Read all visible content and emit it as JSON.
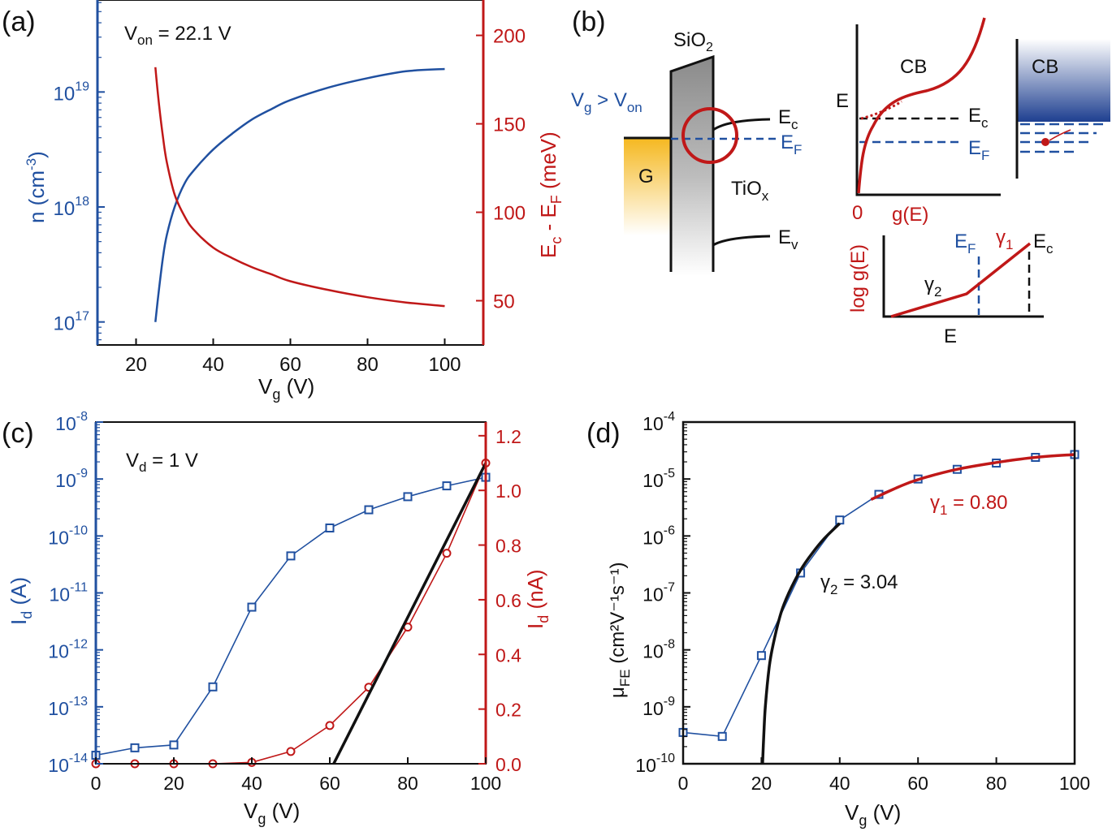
{
  "figure_labels": {
    "a": "(a)",
    "b": "(b)",
    "c": "(c)",
    "d": "(d)"
  },
  "colors": {
    "blue": "#2050a0",
    "red": "#c01818",
    "black": "#111111",
    "gold": "#f5b820"
  },
  "chart_data": [
    {
      "id": "a",
      "type": "line",
      "annotation": {
        "main": "V",
        "sub": "on",
        "rest": " = 22.1 V"
      },
      "xlabel": {
        "main": "V",
        "sub": "g",
        "rest": " (V)"
      },
      "ylabel_left": {
        "main": "n (cm",
        "sup": "-3",
        "rest": ")"
      },
      "ylabel_right": {
        "main": "E",
        "sub": "c",
        "mid": " - E",
        "sub2": "F",
        "rest": " (meV)"
      },
      "xlim": [
        10,
        110
      ],
      "ylim_left_log10": [
        16.8,
        19.8
      ],
      "ylim_right": [
        25,
        220
      ],
      "x_ticks": [
        20,
        40,
        60,
        80,
        100
      ],
      "x_tick_labels": [
        "20",
        "40",
        "60",
        "80",
        "100"
      ],
      "y_left_ticks_exp": [
        17,
        18,
        19
      ],
      "y_left_tick_base": "10",
      "y_left_tick_exps": [
        "17",
        "18",
        "19"
      ],
      "y_right_ticks": [
        50,
        100,
        150,
        200
      ],
      "y_right_tick_labels": [
        "50",
        "100",
        "150",
        "200"
      ],
      "series": [
        {
          "name": "n",
          "axis": "left-log",
          "color": "blue",
          "x": [
            25,
            26,
            27,
            28,
            30,
            32.5,
            35,
            40,
            45,
            50,
            55,
            60,
            70,
            80,
            90,
            100
          ],
          "log10_y": [
            17.0,
            17.3,
            17.57,
            17.76,
            18.0,
            18.2,
            18.32,
            18.5,
            18.64,
            18.76,
            18.85,
            18.93,
            19.04,
            19.12,
            19.18,
            19.2
          ]
        },
        {
          "name": "Ec - EF",
          "axis": "right",
          "color": "red",
          "x": [
            25,
            26,
            27,
            28,
            30,
            32.5,
            35,
            40,
            45,
            50,
            55,
            60,
            70,
            80,
            90,
            100
          ],
          "y": [
            182,
            160,
            142,
            128,
            110,
            98,
            90,
            80,
            74,
            69,
            65,
            61,
            56,
            52,
            49,
            47
          ]
        }
      ]
    },
    {
      "id": "c",
      "type": "line",
      "annotation": {
        "main": "V",
        "sub": "d",
        "rest": " = 1 V"
      },
      "xlabel": {
        "main": "V",
        "sub": "g",
        "rest": " (V)"
      },
      "ylabel_left": {
        "main": "I",
        "sub": "d",
        "rest": " (A)"
      },
      "ylabel_right": {
        "main": "I",
        "sub": "d",
        "rest": " (nA)"
      },
      "xlim": [
        0,
        100
      ],
      "ylim_left_log10": [
        -14,
        -8
      ],
      "ylim_right": [
        0,
        1.25
      ],
      "x_ticks": [
        0,
        20,
        40,
        60,
        80,
        100
      ],
      "x_tick_labels": [
        "0",
        "20",
        "40",
        "60",
        "80",
        "100"
      ],
      "y_left_ticks_exp": [
        -14,
        -13,
        -12,
        -11,
        -10,
        -9,
        -8
      ],
      "y_left_tick_base": "10",
      "y_left_tick_exps": [
        "-14",
        "-13",
        "-12",
        "-11",
        "-10",
        "-9",
        "-8"
      ],
      "y_right_ticks": [
        0.0,
        0.2,
        0.4,
        0.6,
        0.8,
        1.0,
        1.2
      ],
      "y_right_tick_labels": [
        "0.0",
        "0.2",
        "0.4",
        "0.6",
        "0.8",
        "1.0",
        "1.2"
      ],
      "series": [
        {
          "name": "Id log",
          "axis": "left-log",
          "color": "blue",
          "marker": "square",
          "x": [
            0,
            10,
            20,
            30,
            40,
            50,
            60,
            70,
            80,
            90,
            100
          ],
          "log10_y": [
            -13.85,
            -13.72,
            -13.67,
            -12.65,
            -11.25,
            -10.35,
            -9.86,
            -9.54,
            -9.31,
            -9.12,
            -8.97
          ]
        },
        {
          "name": "Id linear",
          "axis": "right",
          "color": "red",
          "marker": "circle",
          "x": [
            0,
            10,
            20,
            30,
            40,
            50,
            60,
            70,
            80,
            90,
            100
          ],
          "y": [
            0.0,
            0.0,
            0.0,
            0.0,
            0.005,
            0.045,
            0.14,
            0.28,
            0.5,
            0.77,
            1.1
          ]
        },
        {
          "name": "linear fit",
          "axis": "right",
          "color": "black",
          "fit": true,
          "x": [
            61,
            100
          ],
          "y": [
            0.0,
            1.1
          ]
        }
      ]
    },
    {
      "id": "d",
      "type": "line",
      "xlabel": {
        "main": "V",
        "sub": "g",
        "rest": " (V)"
      },
      "ylabel_left": {
        "main": "μ",
        "sub": "FE",
        "rest": " (cm²V⁻¹s⁻¹)"
      },
      "xlim": [
        0,
        100
      ],
      "ylim_left_log10": [
        -10,
        -4
      ],
      "x_ticks": [
        0,
        20,
        40,
        60,
        80,
        100
      ],
      "x_tick_labels": [
        "0",
        "20",
        "40",
        "60",
        "80",
        "100"
      ],
      "y_left_ticks_exp": [
        -10,
        -9,
        -8,
        -7,
        -6,
        -5,
        -4
      ],
      "y_left_tick_base": "10",
      "y_left_tick_exps": [
        "-10",
        "-9",
        "-8",
        "-7",
        "-6",
        "-5",
        "-4"
      ],
      "annotations": [
        {
          "main": "γ",
          "sub": "1",
          "rest": " = 0.80",
          "color": "red"
        },
        {
          "main": "γ",
          "sub": "2",
          "rest": " = 3.04",
          "color": "black"
        }
      ],
      "series": [
        {
          "name": "mu FE",
          "axis": "left-log",
          "color": "blue",
          "marker": "square",
          "x": [
            0,
            10,
            20,
            30,
            40,
            50,
            60,
            70,
            80,
            90,
            100
          ],
          "log10_y": [
            -9.45,
            -9.52,
            -8.1,
            -6.65,
            -5.72,
            -5.27,
            -5.0,
            -4.83,
            -4.72,
            -4.62,
            -4.57
          ]
        },
        {
          "name": "gamma2 fit",
          "axis": "left-log",
          "color": "black",
          "fit": true,
          "x": [
            20.3,
            20.6,
            21,
            22,
            23,
            25,
            27,
            30,
            33,
            36,
            40
          ],
          "log10_y": [
            -10.0,
            -9.5,
            -9.0,
            -8.3,
            -7.9,
            -7.35,
            -7.0,
            -6.6,
            -6.3,
            -6.05,
            -5.78
          ]
        },
        {
          "name": "gamma1 fit",
          "axis": "left-log",
          "color": "red",
          "fit": true,
          "x": [
            48,
            55,
            60,
            70,
            80,
            90,
            100
          ],
          "log10_y": [
            -5.36,
            -5.14,
            -5.01,
            -4.83,
            -4.71,
            -4.62,
            -4.57
          ]
        }
      ]
    }
  ],
  "schematic": {
    "sio2": {
      "main": "SiO",
      "sub": "2"
    },
    "vg_label": {
      "a": "V",
      "a_sub": "g",
      "mid": " > V",
      "b_sub": "on"
    },
    "gate": "G",
    "tiox": {
      "main": "TiO",
      "sub": "x"
    },
    "ec": {
      "main": "E",
      "sub": "c"
    },
    "ef": {
      "main": "E",
      "sub": "F"
    },
    "ev": {
      "main": "E",
      "sub": "v"
    },
    "dos_cb": "CB",
    "dos_e_axis": "E",
    "dos_zero": "0",
    "dos_g_axis": "g(E)",
    "dos_ec": {
      "main": "E",
      "sub": "c"
    },
    "dos_ef": {
      "main": "E",
      "sub": "F"
    },
    "band_cb": "CB",
    "log_ylabel": "log g(E)",
    "log_xlabel": "E",
    "log_ef": {
      "main": "E",
      "sub": "F"
    },
    "log_ec": {
      "main": "E",
      "sub": "c"
    },
    "gamma1": {
      "main": "γ",
      "sub": "1"
    },
    "gamma2": {
      "main": "γ",
      "sub": "2"
    }
  }
}
